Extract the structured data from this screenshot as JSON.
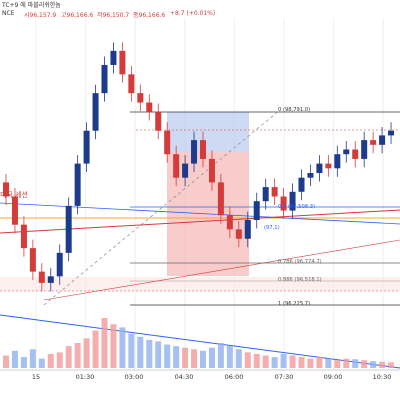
{
  "header": {
    "title_fragment": "TC+9 에 파블리쉬한놈",
    "symbol_fragment": "NCE",
    "ohlc": {
      "open": "시96,157.9",
      "high": "고96,166.6",
      "low": "저96,150.7",
      "close": "종96,166.6",
      "change": "+8.7 (+0.01%)"
    }
  },
  "annotations": {
    "session_label": "미국 세션"
  },
  "fib_levels": [
    {
      "ratio": "0",
      "price_label": "0 (98,791.0)",
      "price": 98791.0,
      "color": "#333333"
    },
    {
      "ratio": "0.5",
      "price_label": "0.5 (97,508.3)",
      "price": 97508.3,
      "color": "#2962ff"
    },
    {
      "ratio": "0.786",
      "price_label": "0.786 (96,774.7)",
      "price": 96774.7,
      "color": "#666666"
    },
    {
      "ratio": "0.886",
      "price_label": "0.886 (96,518.1)",
      "price": 96518.1,
      "color": "#666666"
    },
    {
      "ratio": "1",
      "price_label": "1 (96,225.7)",
      "price": 96225.7,
      "color": "#333333"
    }
  ],
  "fib_partial_labels": {
    "0.618": "(97,1)"
  },
  "x_axis": {
    "ticks": [
      "15",
      "01:30",
      "03:00",
      "04:30",
      "06:00",
      "07:30",
      "09:00",
      "10:30"
    ]
  },
  "colors": {
    "up": "#26a69a",
    "down": "#ef5350",
    "candle_up": "#1e3a8a",
    "candle_down": "#d43b3b",
    "long_box": "#b9c9f0",
    "short_box": "#f7b6b6"
  },
  "chart_data": {
    "type": "candlestick",
    "x": [
      "00:00",
      "00:15",
      "00:30",
      "00:45",
      "01:00",
      "01:15",
      "01:30",
      "01:45",
      "02:00",
      "02:15",
      "02:30",
      "02:45",
      "03:00",
      "03:15",
      "03:30",
      "03:45",
      "04:00",
      "04:15",
      "04:30",
      "04:45",
      "05:00",
      "05:15",
      "05:30",
      "05:45",
      "06:00",
      "06:15",
      "06:30",
      "06:45",
      "07:00",
      "07:15",
      "07:30",
      "07:45",
      "08:00",
      "08:15",
      "08:30",
      "08:45",
      "09:00",
      "09:15",
      "09:30",
      "09:45",
      "10:00",
      "10:15",
      "10:30",
      "10:45"
    ],
    "close": [
      97200,
      96900,
      96650,
      96400,
      96280,
      96350,
      96600,
      97100,
      97550,
      97900,
      98300,
      98600,
      98750,
      98500,
      98300,
      98200,
      98100,
      97900,
      97650,
      97400,
      97550,
      97800,
      97600,
      97350,
      97000,
      96850,
      96750,
      96950,
      97150,
      97300,
      97200,
      97050,
      97250,
      97400,
      97450,
      97550,
      97500,
      97650,
      97700,
      97600,
      97800,
      97750,
      97850,
      97900
    ],
    "y_range": [
      95800,
      99100
    ],
    "volume": [
      40,
      55,
      35,
      60,
      30,
      45,
      50,
      70,
      80,
      95,
      120,
      160,
      140,
      130,
      110,
      100,
      90,
      85,
      75,
      70,
      65,
      60,
      55,
      65,
      80,
      70,
      60,
      50,
      45,
      40,
      35,
      45,
      40,
      35,
      30,
      35,
      30,
      25,
      30,
      28,
      25,
      22,
      20,
      18
    ]
  }
}
